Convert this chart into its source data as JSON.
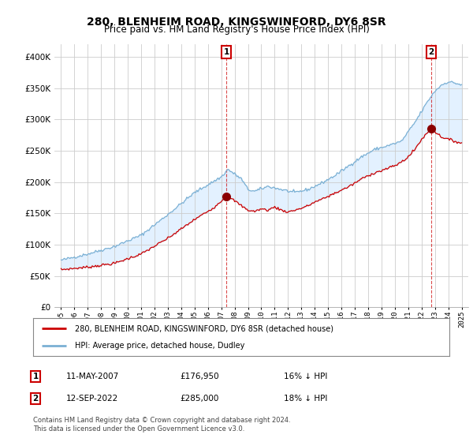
{
  "title": "280, BLENHEIM ROAD, KINGSWINFORD, DY6 8SR",
  "subtitle": "Price paid vs. HM Land Registry's House Price Index (HPI)",
  "ylim": [
    0,
    420000
  ],
  "yticks": [
    0,
    50000,
    100000,
    150000,
    200000,
    250000,
    300000,
    350000,
    400000
  ],
  "ytick_labels": [
    "£0",
    "£50K",
    "£100K",
    "£150K",
    "£200K",
    "£250K",
    "£300K",
    "£350K",
    "£400K"
  ],
  "line1_color": "#cc0000",
  "line2_color": "#7ab0d4",
  "fill_color": "#ddeeff",
  "marker_color": "#8b0000",
  "legend_line1": "280, BLENHEIM ROAD, KINGSWINFORD, DY6 8SR (detached house)",
  "legend_line2": "HPI: Average price, detached house, Dudley",
  "point1_date": "11-MAY-2007",
  "point1_price": "£176,950",
  "point1_note": "16% ↓ HPI",
  "point2_date": "12-SEP-2022",
  "point2_price": "£285,000",
  "point2_note": "18% ↓ HPI",
  "footnote": "Contains HM Land Registry data © Crown copyright and database right 2024.\nThis data is licensed under the Open Government Licence v3.0.",
  "background_color": "#ffffff",
  "grid_color": "#cccccc",
  "title_fontsize": 10,
  "subtitle_fontsize": 8.5,
  "point1_x": 2007.37,
  "point1_y": 176950,
  "point2_x": 2022.71,
  "point2_y": 285000,
  "xlim_left": 1994.5,
  "xlim_right": 2025.5
}
